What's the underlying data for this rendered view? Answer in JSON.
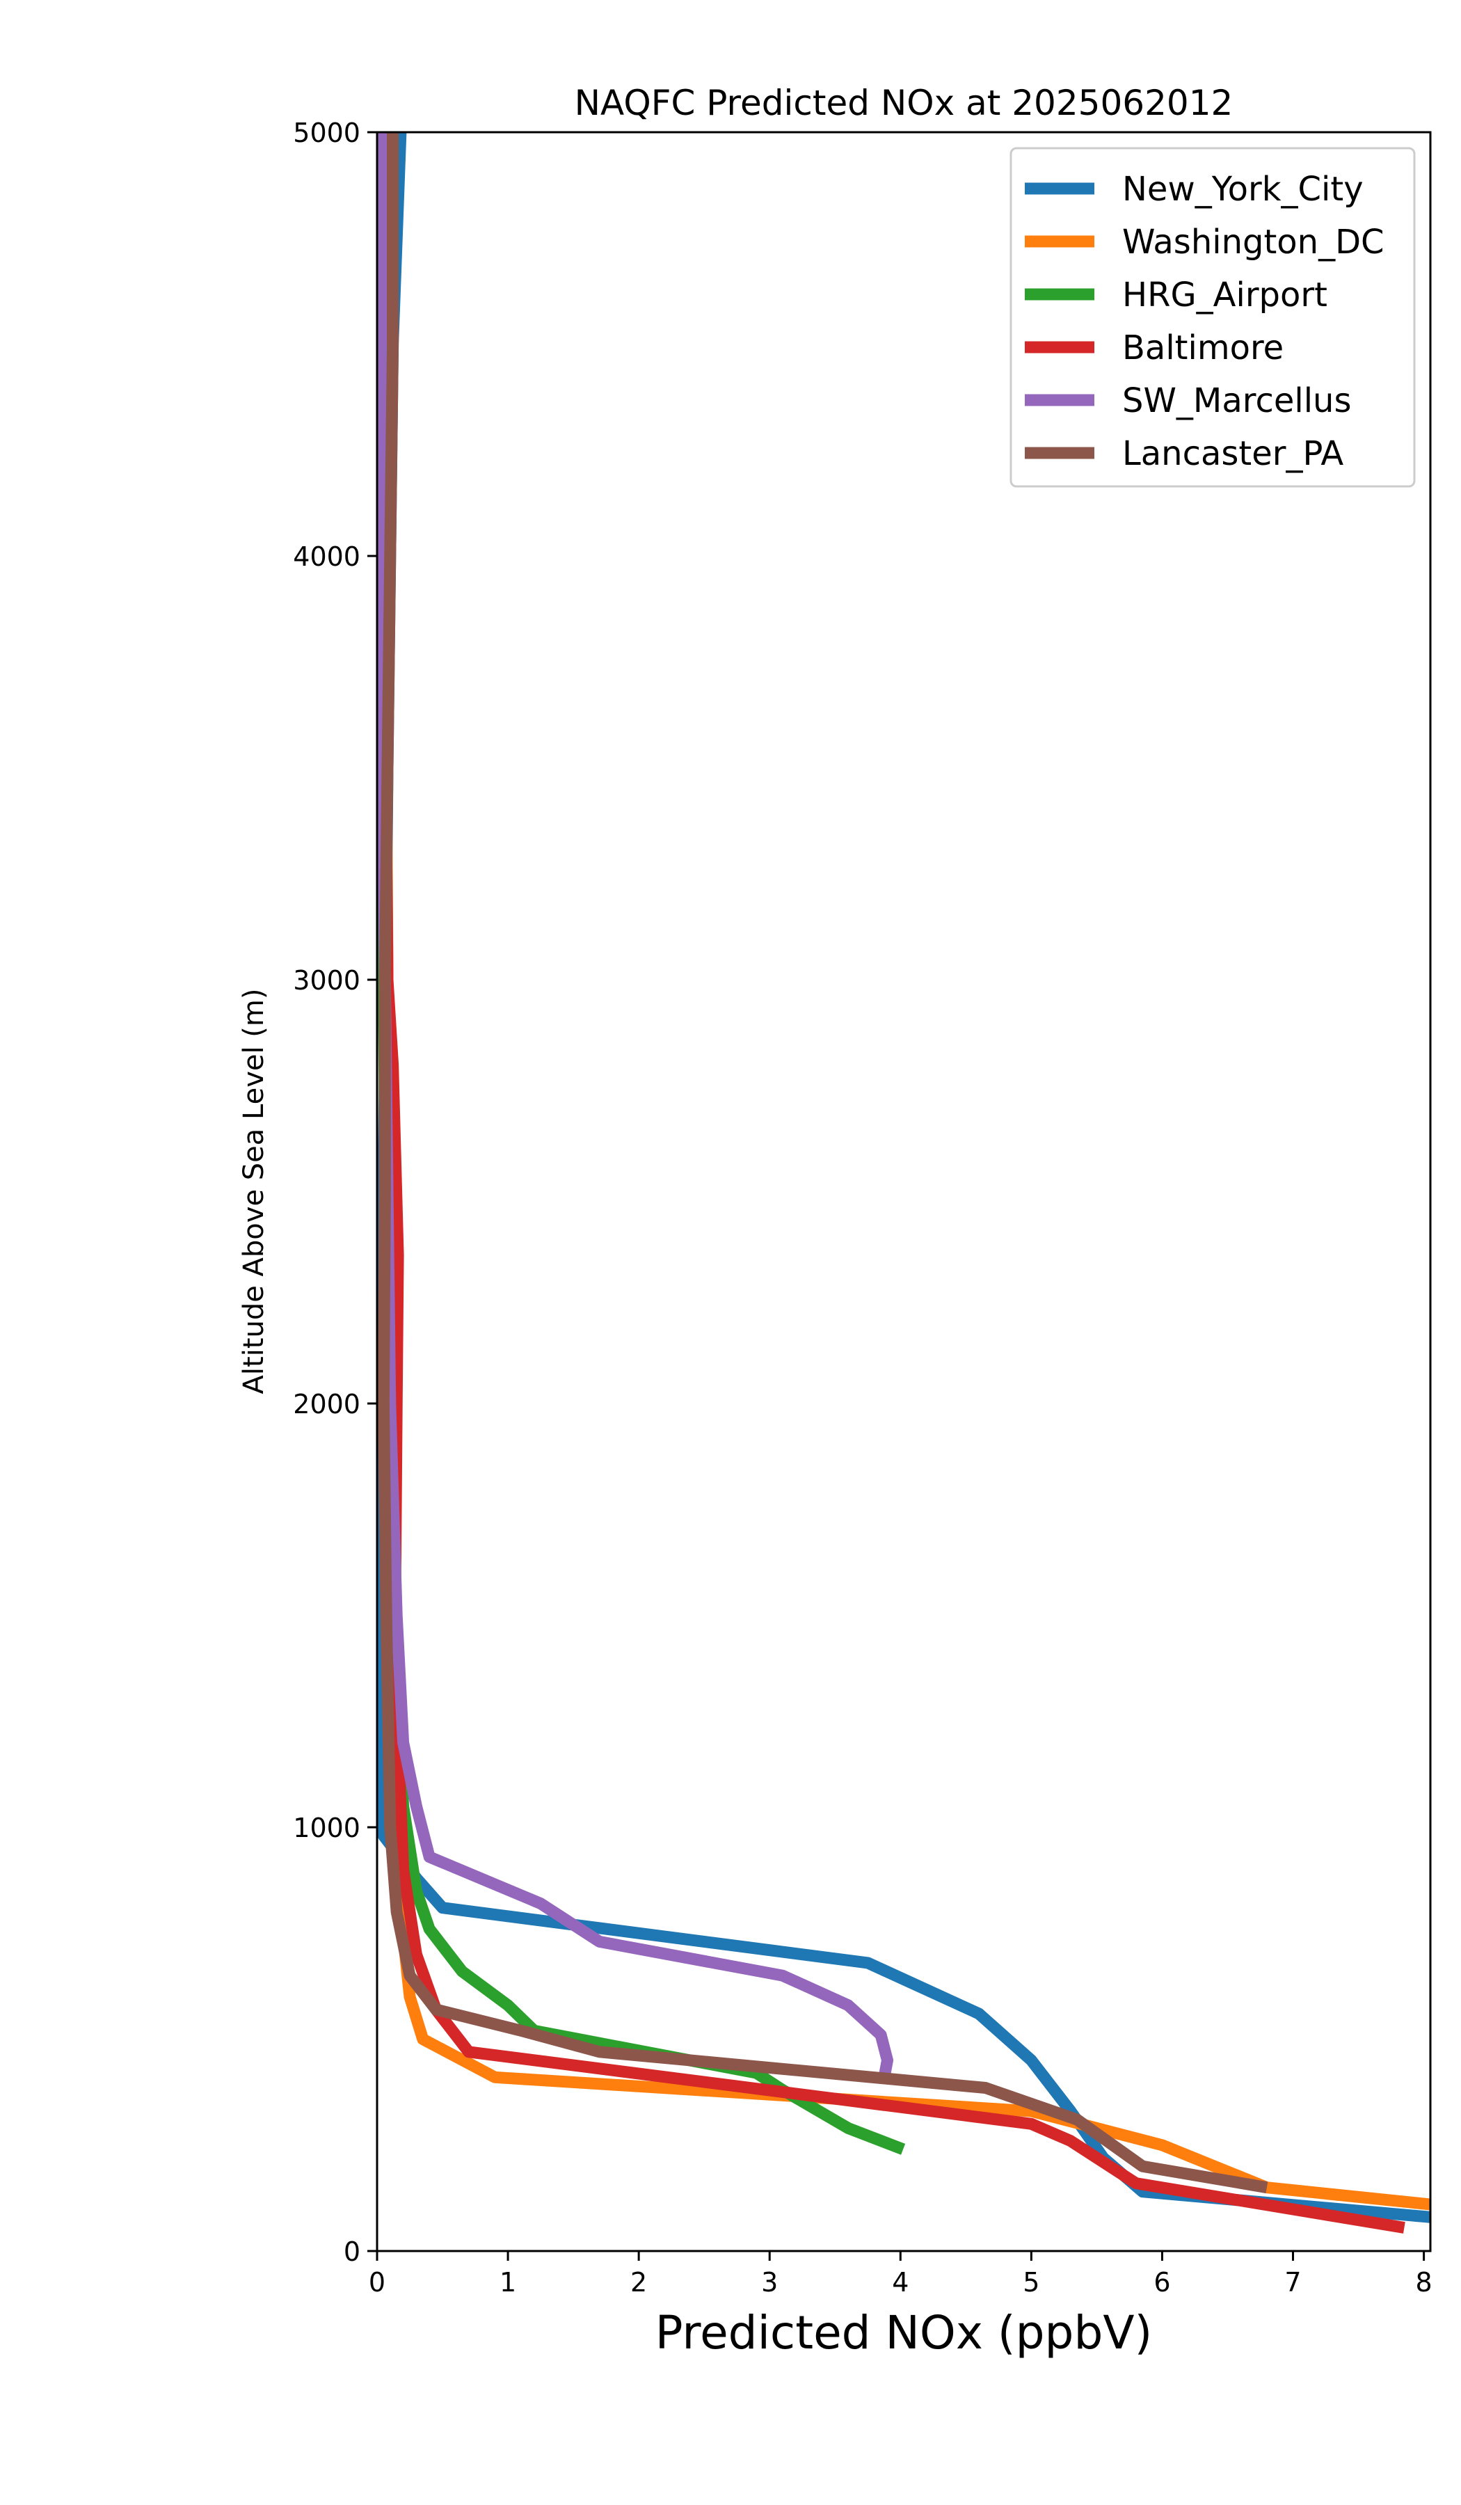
{
  "chart_data": {
    "type": "line",
    "title": "NAQFC Predicted NOx at 2025062012",
    "xlabel": "Predicted NOx (ppbV)",
    "ylabel": "Altitude Above Sea Level (m)",
    "xlim": [
      0,
      8.05
    ],
    "ylim": [
      0,
      5000
    ],
    "xticks": [
      0,
      1,
      2,
      3,
      4,
      5,
      6,
      7,
      8
    ],
    "yticks": [
      0,
      1000,
      2000,
      3000,
      4000,
      5000
    ],
    "grid": false,
    "legend_position": "top-right",
    "series": [
      {
        "name": "New_York_City",
        "color": "#1f77b4",
        "points": [
          [
            8.05,
            80
          ],
          [
            5.85,
            140
          ],
          [
            5.55,
            220
          ],
          [
            5.3,
            330
          ],
          [
            5.0,
            450
          ],
          [
            4.6,
            560
          ],
          [
            3.75,
            680
          ],
          [
            0.5,
            810
          ],
          [
            0.3,
            880
          ],
          [
            0.05,
            980
          ],
          [
            0.02,
            1200
          ],
          [
            0.02,
            1600
          ],
          [
            0.05,
            2500
          ],
          [
            0.08,
            3500
          ],
          [
            0.12,
            4500
          ],
          [
            0.18,
            5000
          ]
        ]
      },
      {
        "name": "Washington_DC",
        "color": "#ff7f0e",
        "points": [
          [
            8.05,
            110
          ],
          [
            6.8,
            150
          ],
          [
            6.0,
            250
          ],
          [
            5.0,
            330
          ],
          [
            0.9,
            410
          ],
          [
            0.35,
            500
          ],
          [
            0.25,
            600
          ],
          [
            0.18,
            800
          ],
          [
            0.12,
            1200
          ],
          [
            0.1,
            2000
          ],
          [
            0.08,
            3000
          ],
          [
            0.06,
            4000
          ],
          [
            0.06,
            5000
          ]
        ]
      },
      {
        "name": "HRG_Airport",
        "color": "#2ca02c",
        "points": [
          [
            4.02,
            240
          ],
          [
            3.6,
            290
          ],
          [
            3.1,
            380
          ],
          [
            2.9,
            420
          ],
          [
            1.2,
            520
          ],
          [
            1.0,
            580
          ],
          [
            0.65,
            660
          ],
          [
            0.4,
            760
          ],
          [
            0.3,
            850
          ],
          [
            0.2,
            1050
          ],
          [
            0.12,
            1500
          ],
          [
            0.08,
            2000
          ],
          [
            0.05,
            3000
          ],
          [
            0.03,
            4000
          ],
          [
            0.03,
            5000
          ]
        ]
      },
      {
        "name": "Baltimore",
        "color": "#d62728",
        "points": [
          [
            7.85,
            55
          ],
          [
            5.8,
            160
          ],
          [
            5.3,
            260
          ],
          [
            5.0,
            300
          ],
          [
            0.7,
            470
          ],
          [
            0.45,
            570
          ],
          [
            0.3,
            700
          ],
          [
            0.2,
            900
          ],
          [
            0.16,
            1200
          ],
          [
            0.14,
            1600
          ],
          [
            0.15,
            2000
          ],
          [
            0.16,
            2350
          ],
          [
            0.12,
            2800
          ],
          [
            0.08,
            3000
          ],
          [
            0.05,
            4000
          ],
          [
            0.05,
            5000
          ]
        ]
      },
      {
        "name": "SW_Marcellus",
        "color": "#9467bd",
        "points": [
          [
            3.87,
            400
          ],
          [
            3.9,
            450
          ],
          [
            3.85,
            510
          ],
          [
            3.6,
            580
          ],
          [
            3.1,
            650
          ],
          [
            1.7,
            730
          ],
          [
            1.25,
            820
          ],
          [
            0.4,
            930
          ],
          [
            0.3,
            1050
          ],
          [
            0.2,
            1200
          ],
          [
            0.15,
            1500
          ],
          [
            0.1,
            2000
          ],
          [
            0.06,
            3000
          ],
          [
            0.03,
            4000
          ],
          [
            0.03,
            5000
          ]
        ]
      },
      {
        "name": "Lancaster_PA",
        "color": "#8c564b",
        "points": [
          [
            6.8,
            150
          ],
          [
            5.85,
            200
          ],
          [
            5.35,
            310
          ],
          [
            4.65,
            385
          ],
          [
            1.7,
            470
          ],
          [
            1.1,
            520
          ],
          [
            0.45,
            570
          ],
          [
            0.25,
            650
          ],
          [
            0.15,
            800
          ],
          [
            0.1,
            1000
          ],
          [
            0.07,
            1500
          ],
          [
            0.05,
            2000
          ],
          [
            0.06,
            2500
          ],
          [
            0.06,
            3000
          ],
          [
            0.08,
            3500
          ],
          [
            0.1,
            4000
          ],
          [
            0.12,
            4500
          ],
          [
            0.12,
            5000
          ]
        ]
      }
    ]
  }
}
